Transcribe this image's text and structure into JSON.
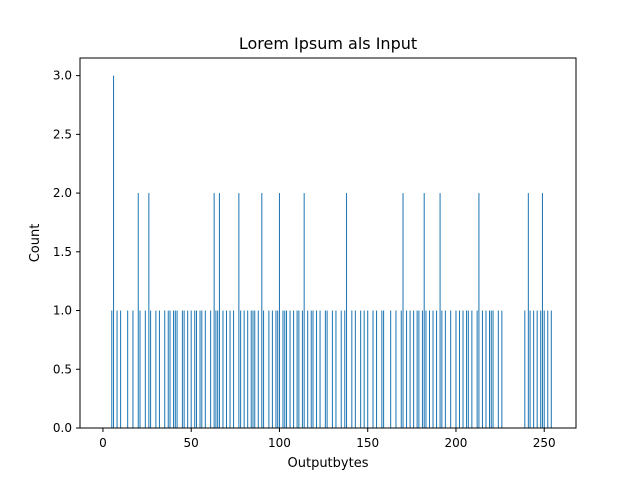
{
  "chart_data": {
    "type": "bar",
    "title": "Lorem Ipsum als Input",
    "xlabel": "Outputbytes",
    "ylabel": "Count",
    "xlim": [
      -13,
      268
    ],
    "ylim": [
      0,
      3.15
    ],
    "xticks": [
      0,
      50,
      100,
      150,
      200,
      250
    ],
    "xtick_labels": [
      "0",
      "50",
      "100",
      "150",
      "200",
      "250"
    ],
    "yticks": [
      0,
      0.5,
      1.0,
      1.5,
      2.0,
      2.5,
      3.0
    ],
    "ytick_labels": [
      "0.0",
      "0.5",
      "1.0",
      "1.5",
      "2.0",
      "2.5",
      "3.0"
    ],
    "grid": false,
    "bar_color": "#1f77b4",
    "x": [
      5,
      6,
      8,
      10,
      14,
      17,
      20,
      21,
      24,
      26,
      27,
      30,
      32,
      35,
      37,
      38,
      40,
      41,
      42,
      45,
      46,
      48,
      50,
      52,
      53,
      55,
      56,
      58,
      61,
      63,
      64,
      65,
      66,
      68,
      70,
      72,
      74,
      77,
      78,
      80,
      82,
      84,
      85,
      86,
      88,
      90,
      91,
      94,
      96,
      98,
      99,
      100,
      102,
      103,
      104,
      106,
      108,
      110,
      111,
      113,
      114,
      116,
      118,
      119,
      121,
      123,
      126,
      127,
      130,
      132,
      135,
      137,
      138,
      141,
      143,
      146,
      148,
      150,
      153,
      155,
      158,
      159,
      163,
      166,
      169,
      170,
      172,
      174,
      176,
      178,
      179,
      181,
      182,
      183,
      185,
      187,
      189,
      191,
      192,
      194,
      197,
      200,
      202,
      204,
      206,
      207,
      209,
      212,
      213,
      215,
      217,
      219,
      220,
      221,
      224,
      226,
      239,
      241,
      242,
      244,
      246,
      248,
      249,
      250,
      252,
      254
    ],
    "values": [
      1,
      3,
      1,
      1,
      1,
      1,
      2,
      1,
      1,
      2,
      1,
      1,
      1,
      1,
      1,
      1,
      1,
      1,
      1,
      1,
      1,
      1,
      1,
      1,
      1,
      1,
      1,
      1,
      1,
      2,
      1,
      1,
      2,
      1,
      1,
      1,
      1,
      2,
      1,
      1,
      1,
      1,
      1,
      1,
      1,
      2,
      1,
      1,
      1,
      1,
      1,
      2,
      1,
      1,
      1,
      1,
      1,
      1,
      1,
      1,
      2,
      1,
      1,
      1,
      1,
      1,
      1,
      1,
      1,
      1,
      1,
      1,
      2,
      1,
      1,
      1,
      1,
      1,
      1,
      1,
      1,
      1,
      1,
      1,
      1,
      2,
      1,
      1,
      1,
      1,
      1,
      1,
      2,
      1,
      1,
      1,
      1,
      2,
      1,
      1,
      1,
      1,
      1,
      1,
      1,
      1,
      1,
      1,
      2,
      1,
      1,
      1,
      1,
      1,
      1,
      1,
      1,
      2,
      1,
      1,
      1,
      1,
      2,
      1,
      1,
      1
    ]
  }
}
